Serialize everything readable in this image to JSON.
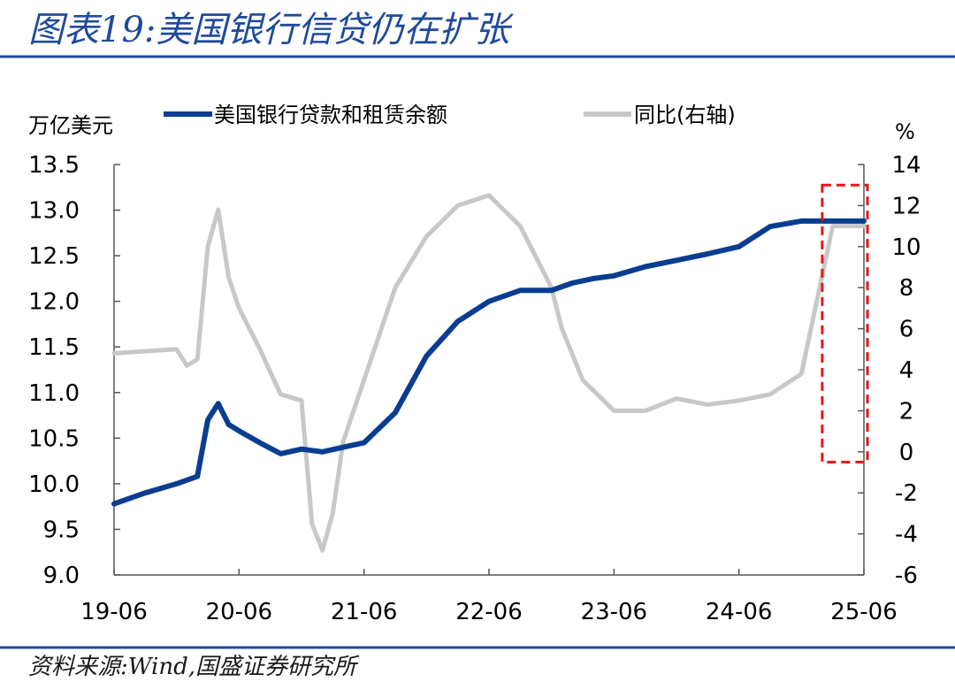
{
  "header": {
    "title": "图表19:美国银行信贷仍在扩张"
  },
  "footer": {
    "source": "资料来源:Wind,国盛证券研究所"
  },
  "colors": {
    "primary": "#0a3d91",
    "secondary": "#c8c8c8",
    "highlight": "#e8141b",
    "rule": "#1f4a9c"
  },
  "chart_data": {
    "type": "line",
    "left_axis": {
      "label": "万亿美元",
      "ylim": [
        9.0,
        13.5
      ],
      "ticks": [
        "13.5",
        "13.0",
        "12.5",
        "12.0",
        "11.5",
        "11.0",
        "10.5",
        "10.0",
        "9.5",
        "9.0"
      ]
    },
    "right_axis": {
      "label": "%",
      "ylim": [
        -6,
        14
      ],
      "ticks": [
        "14",
        "12",
        "10",
        "8",
        "6",
        "4",
        "2",
        "0",
        "-2",
        "-4",
        "-6"
      ]
    },
    "x_ticks": [
      "19-06",
      "20-06",
      "21-06",
      "22-06",
      "23-06",
      "24-06",
      "25-06"
    ],
    "grid": false,
    "legend_position": "top",
    "series": [
      {
        "name": "美国银行贷款和租赁余额",
        "axis": "left",
        "x": [
          "2019-06",
          "2019-09",
          "2019-12",
          "2020-02",
          "2020-03",
          "2020-04",
          "2020-05",
          "2020-06",
          "2020-08",
          "2020-10",
          "2020-12",
          "2021-02",
          "2021-04",
          "2021-06",
          "2021-09",
          "2021-12",
          "2022-03",
          "2022-06",
          "2022-09",
          "2022-12",
          "2023-02",
          "2023-04",
          "2023-06",
          "2023-09",
          "2023-12",
          "2024-03",
          "2024-06",
          "2024-09",
          "2024-12",
          "2025-01",
          "2025-03",
          "2025-05",
          "2025-06"
        ],
        "values": [
          9.78,
          9.9,
          10.0,
          10.08,
          10.7,
          10.88,
          10.65,
          10.58,
          10.45,
          10.33,
          10.38,
          10.35,
          10.4,
          10.45,
          10.78,
          11.4,
          11.78,
          12.0,
          12.12,
          12.12,
          12.2,
          12.25,
          12.28,
          12.38,
          12.45,
          12.52,
          12.6,
          12.82,
          12.88,
          12.88,
          12.88,
          12.88,
          12.88
        ]
      },
      {
        "name": "同比(右轴)",
        "axis": "right",
        "x": [
          "2019-06",
          "2019-12",
          "2020-01",
          "2020-02",
          "2020-03",
          "2020-04",
          "2020-05",
          "2020-06",
          "2020-08",
          "2020-10",
          "2020-12",
          "2021-01",
          "2021-02",
          "2021-03",
          "2021-04",
          "2021-06",
          "2021-09",
          "2021-12",
          "2022-03",
          "2022-06",
          "2022-09",
          "2022-12",
          "2023-01",
          "2023-03",
          "2023-06",
          "2023-09",
          "2023-12",
          "2024-03",
          "2024-06",
          "2024-09",
          "2024-12",
          "2025-03",
          "2025-06"
        ],
        "values": [
          4.8,
          5.0,
          4.2,
          4.5,
          10.0,
          11.8,
          8.5,
          7.0,
          5.0,
          2.8,
          2.5,
          -3.5,
          -4.8,
          -3.0,
          0.5,
          3.5,
          8.0,
          10.5,
          12.0,
          12.5,
          11.0,
          8.0,
          6.0,
          3.5,
          2.0,
          2.0,
          2.6,
          2.3,
          2.5,
          2.8,
          3.8,
          11.0,
          11.0
        ]
      }
    ],
    "annotations": [
      {
        "type": "dashed-rect",
        "x": [
          "2025-02",
          "2025-06"
        ],
        "right_axis_range": [
          -0.5,
          13.0
        ]
      }
    ]
  }
}
